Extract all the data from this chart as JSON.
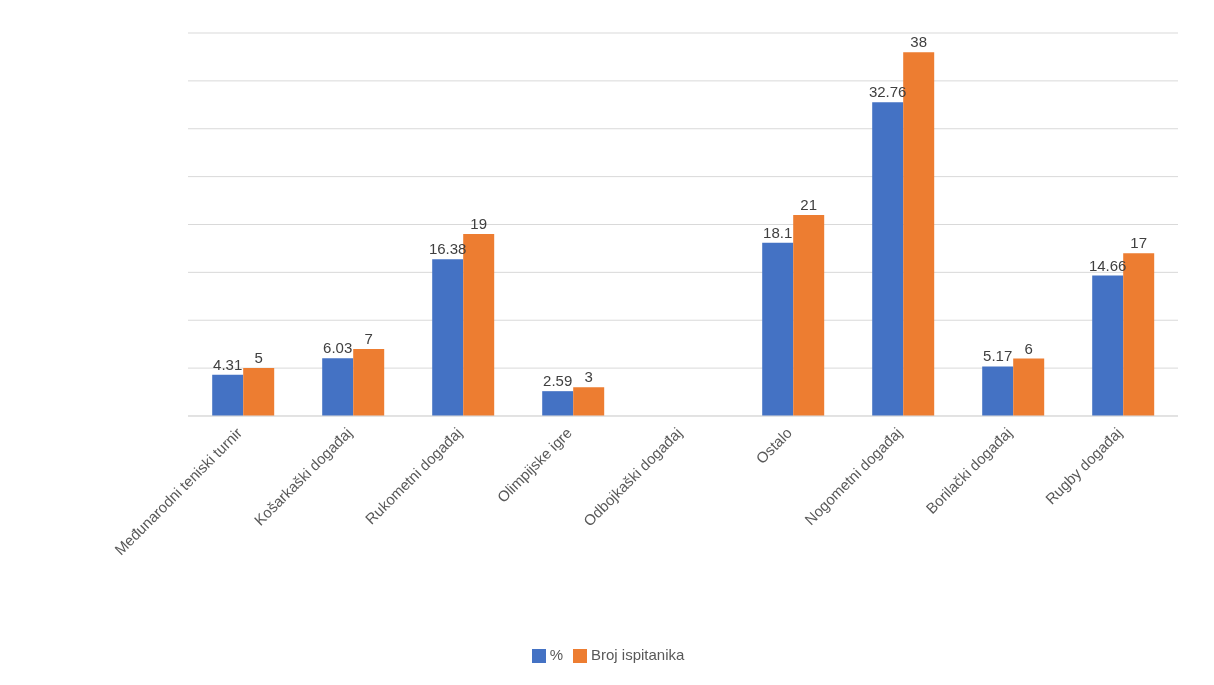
{
  "chart_data": {
    "type": "bar",
    "categories": [
      "Međunarodni teniski turnir",
      "Košarkaški događaj",
      "Rukometni događaj",
      "Olimpijske igre",
      "Odbojkaški događaj",
      "Ostalo",
      "Nogometni događaj",
      "Borilački događaj",
      "Rugby događaj"
    ],
    "series": [
      {
        "name": "%",
        "color": "#4472c4",
        "values": [
          4.31,
          6.03,
          16.38,
          2.59,
          null,
          18.1,
          32.76,
          5.17,
          14.66
        ]
      },
      {
        "name": "Broj ispitanika",
        "color": "#ed7d31",
        "values": [
          5,
          7,
          19,
          3,
          null,
          21,
          38,
          6,
          17
        ]
      }
    ],
    "tick_labels": "x",
    "grid": "y",
    "legend": "bottom",
    "data_labels": true
  }
}
